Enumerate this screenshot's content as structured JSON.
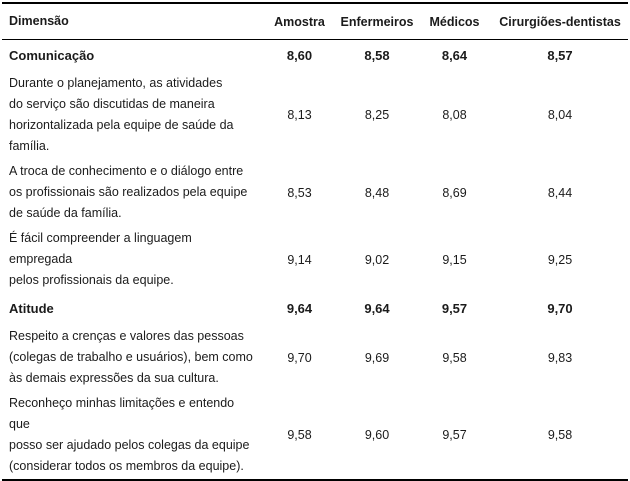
{
  "table": {
    "columns": {
      "dimension": "Dimensão",
      "sample": "Amostra",
      "nurses": "Enfermeiros",
      "doctors": "Médicos",
      "dentists": "Cirurgiões-dentistas"
    },
    "rows": [
      {
        "label": "Comunicação",
        "bold": true,
        "values": [
          "8,60",
          "8,58",
          "8,64",
          "8,57"
        ]
      },
      {
        "label": "Durante o planejamento, as atividades\ndo serviço são discutidas de maneira\nhorizontalizada pela equipe de saúde da\nfamília.",
        "bold": false,
        "values": [
          "8,13",
          "8,25",
          "8,08",
          "8,04"
        ]
      },
      {
        "label": "A troca de conhecimento e o diálogo entre\nos profissionais são realizados pela equipe\nde saúde da família.",
        "bold": false,
        "values": [
          "8,53",
          "8,48",
          "8,69",
          "8,44"
        ]
      },
      {
        "label": "É fácil compreender a linguagem empregada\npelos profissionais da equipe.",
        "bold": false,
        "values": [
          "9,14",
          "9,02",
          "9,15",
          "9,25"
        ]
      },
      {
        "label": "Atitude",
        "bold": true,
        "values": [
          "9,64",
          "9,64",
          "9,57",
          "9,70"
        ]
      },
      {
        "label": "Respeito a crenças e valores das pessoas\n(colegas de trabalho e usuários), bem como\nàs demais expressões da sua cultura.",
        "bold": false,
        "values": [
          "9,70",
          "9,69",
          "9,58",
          "9,83"
        ]
      },
      {
        "label": "Reconheço minhas limitações e entendo que\nposso ser ajudado pelos colegas da equipe\n(considerar todos os membros da equipe).",
        "bold": false,
        "values": [
          "9,58",
          "9,60",
          "9,57",
          "9,58"
        ]
      }
    ]
  }
}
